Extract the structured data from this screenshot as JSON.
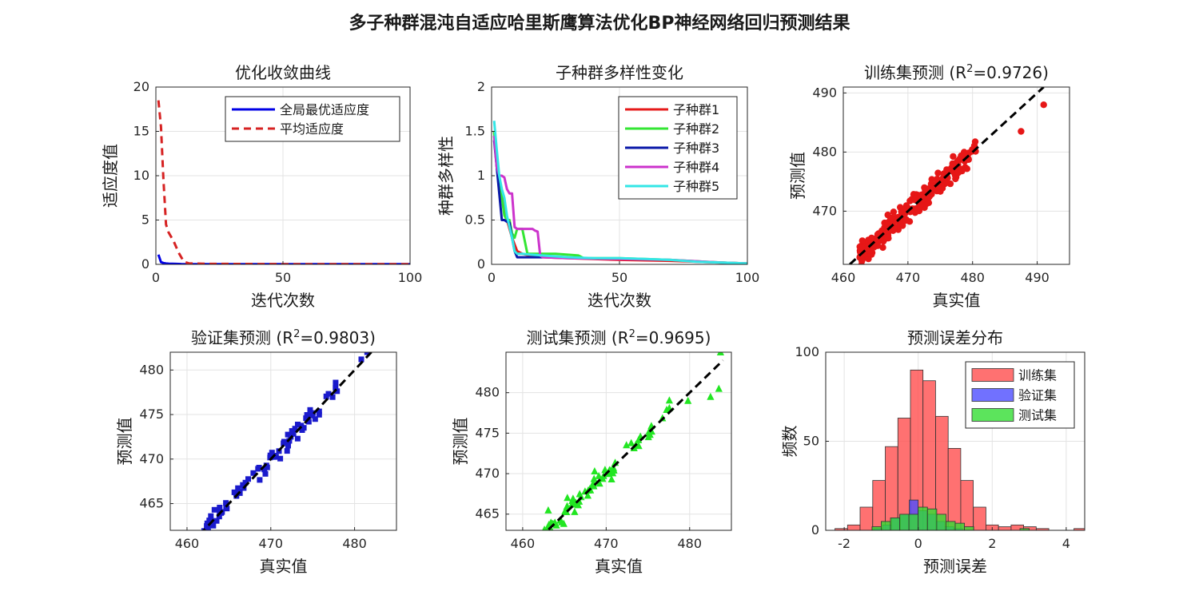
{
  "figure": {
    "title": "多子种群混沌自适应哈里斯鹰算法优化BP神经网络回归预测结果"
  },
  "chart_data": [
    {
      "id": "convergence",
      "type": "line",
      "title": "优化收敛曲线",
      "xlabel": "迭代次数",
      "ylabel": "适应度值",
      "xlim": [
        0,
        100
      ],
      "ylim": [
        0,
        20
      ],
      "xticks": [
        0,
        50,
        100
      ],
      "yticks": [
        0,
        5,
        10,
        15,
        20
      ],
      "grid": true,
      "legend_position": "top-right",
      "series": [
        {
          "name": "全局最优适应度",
          "color": "#0000e6",
          "style": "solid",
          "x": [
            1,
            2,
            3,
            4,
            5,
            8,
            10,
            20,
            50,
            100
          ],
          "y": [
            1.1,
            0.25,
            0.15,
            0.1,
            0.08,
            0.05,
            0.04,
            0.03,
            0.02,
            0.02
          ]
        },
        {
          "name": "平均适应度",
          "color": "#d62222",
          "style": "dashed",
          "x": [
            1,
            2,
            3,
            4,
            5,
            7,
            9,
            11,
            13,
            20,
            50,
            100
          ],
          "y": [
            18.5,
            15.5,
            9.5,
            4.5,
            3.6,
            2.6,
            1.3,
            0.3,
            0.12,
            0.06,
            0.03,
            0.03
          ]
        }
      ]
    },
    {
      "id": "diversity",
      "type": "line",
      "title": "子种群多样性变化",
      "xlabel": "迭代次数",
      "ylabel": "种群多样性",
      "xlim": [
        0,
        100
      ],
      "ylim": [
        0,
        2
      ],
      "xticks": [
        0,
        50,
        100
      ],
      "yticks": [
        0,
        0.5,
        1,
        1.5,
        2
      ],
      "grid": true,
      "legend_position": "top-right",
      "series": [
        {
          "name": "子种群1",
          "color": "#e61a1a",
          "x": [
            1,
            2,
            3,
            4,
            5,
            6,
            8,
            10,
            12,
            15,
            20,
            30,
            50,
            70,
            90,
            100
          ],
          "y": [
            1.5,
            1.2,
            0.95,
            0.8,
            0.6,
            0.5,
            0.3,
            0.15,
            0.12,
            0.1,
            0.08,
            0.07,
            0.05,
            0.04,
            0.02,
            0.01
          ]
        },
        {
          "name": "子种群2",
          "color": "#33e633",
          "x": [
            1,
            2,
            3,
            4,
            5,
            6,
            7,
            8,
            9,
            10,
            12,
            14,
            20,
            25,
            34,
            36,
            50,
            70,
            90,
            100
          ],
          "y": [
            1.5,
            1.1,
            0.9,
            0.75,
            0.55,
            0.5,
            0.5,
            0.35,
            0.3,
            0.4,
            0.4,
            0.12,
            0.12,
            0.12,
            0.1,
            0.07,
            0.07,
            0.05,
            0.02,
            0.01
          ]
        },
        {
          "name": "子种群3",
          "color": "#0a18a8",
          "x": [
            1,
            2,
            3,
            4,
            5,
            6,
            7,
            8,
            9,
            10,
            12,
            15,
            20
          ],
          "y": [
            1.4,
            1.1,
            0.8,
            0.5,
            0.5,
            0.48,
            0.47,
            0.3,
            0.15,
            0.08,
            0.08,
            0.08,
            0.08
          ]
        },
        {
          "name": "子种群4",
          "color": "#cc33cc",
          "x": [
            1,
            2,
            3,
            4,
            5,
            6,
            7,
            8,
            9,
            10,
            11,
            12,
            16,
            17,
            18,
            19,
            20,
            30,
            50,
            70,
            90,
            100
          ],
          "y": [
            1.45,
            1.1,
            1.0,
            1.0,
            0.98,
            0.85,
            0.8,
            0.8,
            0.42,
            0.4,
            0.4,
            0.4,
            0.4,
            0.38,
            0.37,
            0.1,
            0.08,
            0.07,
            0.06,
            0.05,
            0.02,
            0.01
          ]
        },
        {
          "name": "子种群5",
          "color": "#33e6e6",
          "x": [
            1,
            2,
            3,
            4,
            5,
            6,
            7,
            8,
            9,
            10,
            12,
            15,
            20,
            30,
            40,
            50,
            60,
            70,
            80,
            90,
            100
          ],
          "y": [
            1.62,
            1.3,
            1.0,
            0.85,
            0.75,
            0.55,
            0.42,
            0.3,
            0.15,
            0.12,
            0.12,
            0.11,
            0.1,
            0.08,
            0.07,
            0.07,
            0.06,
            0.05,
            0.03,
            0.02,
            0.01
          ]
        }
      ]
    },
    {
      "id": "train",
      "type": "scatter",
      "title_prefix": "训练集预测 (R",
      "title_sup": "2",
      "title_suffix": "=0.9726)",
      "xlabel": "真实值",
      "ylabel": "预测值",
      "xlim": [
        460,
        495
      ],
      "ylim": [
        461,
        491
      ],
      "xticks": [
        460,
        470,
        480,
        490
      ],
      "yticks": [
        470,
        480,
        490
      ],
      "grid": true,
      "marker": "circle",
      "color": "#e61717",
      "count": 300,
      "x_range": [
        462.5,
        481
      ],
      "noise": 0.9,
      "extra_points": [
        [
          487.5,
          483.5
        ],
        [
          491,
          488
        ]
      ],
      "fit_line": [
        [
          461,
          461
        ],
        [
          491,
          491
        ]
      ]
    },
    {
      "id": "val",
      "type": "scatter",
      "title_prefix": "验证集预测 (R",
      "title_sup": "2",
      "title_suffix": "=0.9803)",
      "xlabel": "真实值",
      "ylabel": "预测值",
      "xlim": [
        458,
        485
      ],
      "ylim": [
        462,
        482
      ],
      "xticks": [
        460,
        470,
        480
      ],
      "yticks": [
        465,
        470,
        475,
        480
      ],
      "grid": true,
      "marker": "square",
      "color": "#1a1acc",
      "count": 85,
      "x_range": [
        462,
        478
      ],
      "noise": 0.55,
      "extra_points": [
        [
          480.8,
          481.2
        ],
        [
          481.5,
          482
        ]
      ],
      "fit_line": [
        [
          461.5,
          461.5
        ],
        [
          482,
          482
        ]
      ]
    },
    {
      "id": "test",
      "type": "scatter",
      "title_prefix": "测试集预测 (R",
      "title_sup": "2",
      "title_suffix": "=0.9695)",
      "xlabel": "真实值",
      "ylabel": "预测值",
      "xlim": [
        458,
        485
      ],
      "ylim": [
        463,
        485
      ],
      "xticks": [
        460,
        470,
        480
      ],
      "yticks": [
        465,
        470,
        475,
        480
      ],
      "grid": true,
      "marker": "triangle",
      "color": "#22e622",
      "count": 85,
      "x_range": [
        462.5,
        478
      ],
      "noise": 0.6,
      "extra_points": [
        [
          479.8,
          479
        ],
        [
          482.5,
          479.5
        ],
        [
          483.5,
          480.5
        ],
        [
          483.7,
          485
        ]
      ],
      "fit_line": [
        [
          462,
          462
        ],
        [
          484,
          484
        ]
      ]
    },
    {
      "id": "hist",
      "type": "histogram",
      "title": "预测误差分布",
      "xlabel": "预测误差",
      "ylabel": "频数",
      "xlim": [
        -2.5,
        4.5
      ],
      "ylim": [
        0,
        100
      ],
      "xticks": [
        -2,
        0,
        2,
        4
      ],
      "yticks": [
        0,
        50,
        100
      ],
      "grid": true,
      "legend_position": "top-right",
      "series": [
        {
          "name": "训练集",
          "color": "#ff4d4d",
          "opacity": 0.8,
          "bin_width": 0.34,
          "bins": [
            [
              -2.25,
              1
            ],
            [
              -1.91,
              3
            ],
            [
              -1.57,
              13
            ],
            [
              -1.23,
              28
            ],
            [
              -0.89,
              47
            ],
            [
              -0.55,
              63
            ],
            [
              -0.21,
              90
            ],
            [
              0.13,
              84
            ],
            [
              0.47,
              64
            ],
            [
              0.81,
              46
            ],
            [
              1.15,
              28
            ],
            [
              1.49,
              13
            ],
            [
              1.83,
              3
            ],
            [
              2.17,
              2
            ],
            [
              2.51,
              3
            ],
            [
              2.85,
              2
            ],
            [
              3.19,
              1
            ],
            [
              4.21,
              1
            ]
          ]
        },
        {
          "name": "验证集",
          "color": "#4d4dff",
          "opacity": 0.8,
          "bin_width": 0.24,
          "bins": [
            [
              -1.2,
              1
            ],
            [
              -0.96,
              3
            ],
            [
              -0.72,
              7
            ],
            [
              -0.48,
              9
            ],
            [
              -0.24,
              17
            ],
            [
              0.0,
              11
            ],
            [
              0.24,
              9
            ],
            [
              0.48,
              5
            ],
            [
              0.72,
              2
            ],
            [
              0.96,
              1
            ]
          ]
        },
        {
          "name": "测试集",
          "color": "#33dd33",
          "opacity": 0.8,
          "bin_width": 0.25,
          "bins": [
            [
              -1.25,
              2
            ],
            [
              -1.0,
              5
            ],
            [
              -0.75,
              7
            ],
            [
              -0.5,
              9
            ],
            [
              -0.25,
              9
            ],
            [
              0.0,
              13
            ],
            [
              0.25,
              12
            ],
            [
              0.5,
              9
            ],
            [
              0.75,
              5
            ],
            [
              1.0,
              4
            ],
            [
              1.25,
              2
            ],
            [
              2.75,
              1
            ]
          ]
        }
      ]
    }
  ]
}
